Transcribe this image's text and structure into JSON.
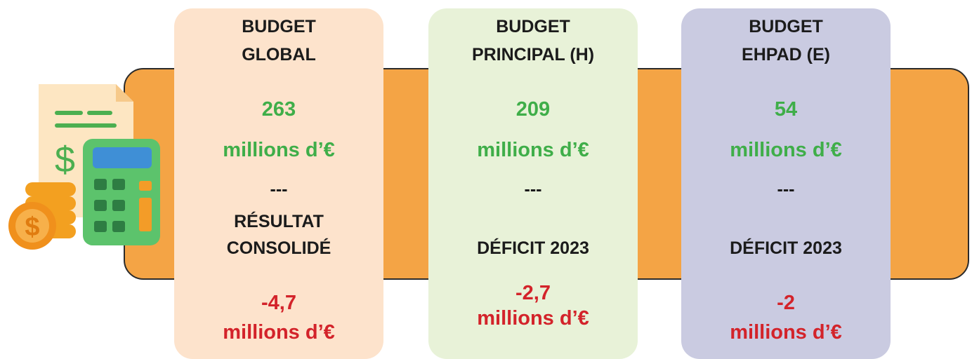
{
  "cards": [
    {
      "title": [
        "BUDGET",
        "GLOBAL"
      ],
      "amount": "263",
      "amount_unit": "millions d’€",
      "separator": "---",
      "label": [
        "RÉSULTAT",
        "CONSOLIDÉ"
      ],
      "result": "-4,7",
      "result_unit": "millions d’€"
    },
    {
      "title": [
        "BUDGET",
        "PRINCIPAL (H)"
      ],
      "amount": "209",
      "amount_unit": "millions d’€",
      "separator": "---",
      "label": [
        "DÉFICIT 2023"
      ],
      "result": "-2,7",
      "result_unit": "millions d’€"
    },
    {
      "title": [
        "BUDGET",
        "EHPAD (E)"
      ],
      "amount": "54",
      "amount_unit": "millions d’€",
      "separator": "---",
      "label": [
        "DÉFICIT 2023"
      ],
      "result": "-2",
      "result_unit": "millions d’€"
    }
  ]
}
